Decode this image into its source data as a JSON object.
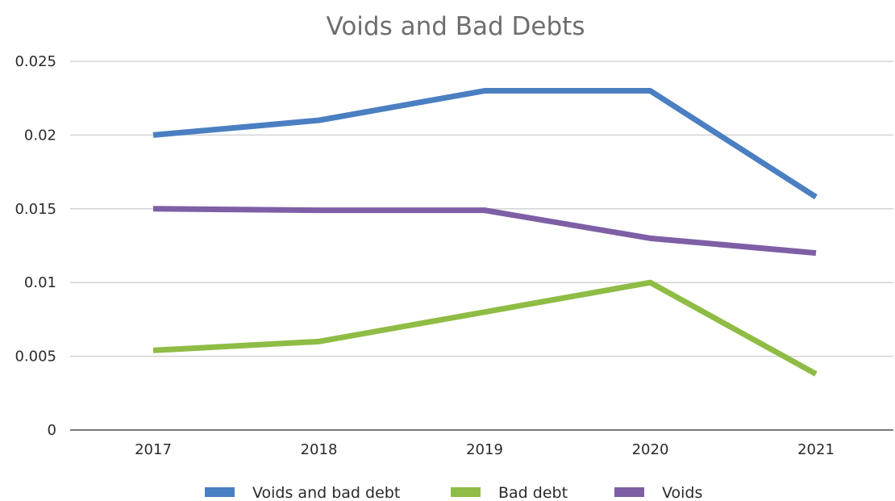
{
  "chart_data": {
    "type": "line",
    "title": "Voids and Bad Debts",
    "xlabel": "",
    "ylabel": "",
    "categories": [
      "2017",
      "2018",
      "2019",
      "2020",
      "2021"
    ],
    "series": [
      {
        "name": "Voids and bad debt",
        "values": [
          0.02,
          0.021,
          0.023,
          0.023,
          0.0158
        ],
        "color": "#4a7fc1"
      },
      {
        "name": "Bad debt",
        "values": [
          0.0054,
          0.006,
          0.008,
          0.01,
          0.0038
        ],
        "color": "#8fbc45"
      },
      {
        "name": "Voids",
        "values": [
          0.015,
          0.0149,
          0.0149,
          0.013,
          0.012
        ],
        "color": "#7e5fa6"
      }
    ],
    "ylim": [
      0,
      0.025
    ],
    "yticks": [
      "0",
      "0.005",
      "0.01",
      "0.015",
      "0.02",
      "0.025"
    ],
    "ytick_values": [
      0,
      0.005,
      0.01,
      0.015,
      0.02,
      0.025
    ],
    "grid": true,
    "legend_position": "bottom"
  }
}
